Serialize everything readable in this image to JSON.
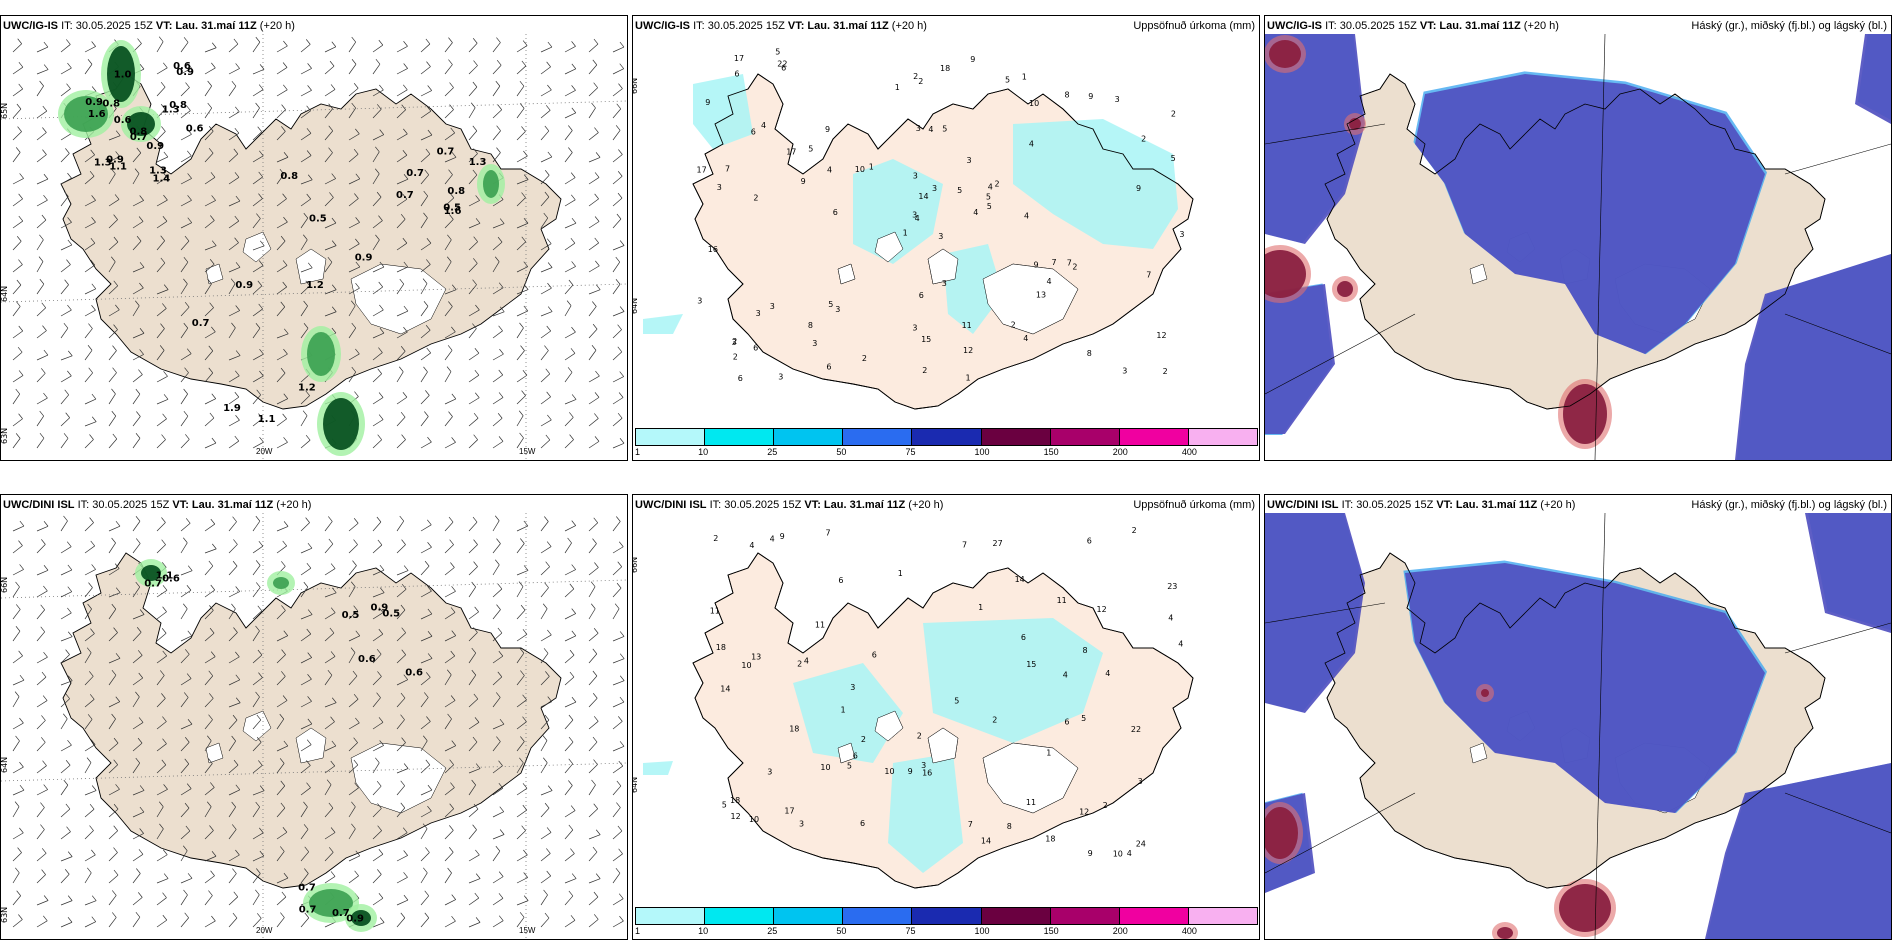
{
  "rows": [
    {
      "model": "UWC/IG-IS",
      "wind_panel": {
        "header": {
          "model": "UWC/IG-IS",
          "it_label": "IT: 30.05.2025 15Z",
          "vt_label": "VT: Lau. 31.maí 11Z",
          "lead": "(+20 h)"
        },
        "lat_labels": [
          "65N",
          "64N",
          "63N"
        ],
        "lon_labels": [
          "20W",
          "15W"
        ],
        "values": [
          "1.4",
          "1.0",
          "0.9",
          "0.8",
          "0.8",
          "1.3",
          "0.6",
          "0.6",
          "0.7",
          "1.1",
          "1.3",
          "0.9",
          "0.8",
          "0.9",
          "1.3",
          "0.6",
          "1.6",
          "0.9",
          "0.8",
          "1.3",
          "0.5",
          "0.7",
          "0.5",
          "1.6",
          "0.7",
          "0.7",
          "0.8",
          "0.7",
          "1.1",
          "0.9",
          "1.2",
          "0.9",
          "1.2",
          "1.9"
        ]
      },
      "precip_panel": {
        "header": {
          "model": "UWC/IG-IS",
          "it_label": "IT: 30.05.2025 15Z",
          "vt_label": "VT: Lau. 31.maí 11Z",
          "lead": "(+20 h)"
        },
        "title": "Uppsöfnuð úrkoma (mm)",
        "lat_labels": [
          "66N",
          "64N"
        ],
        "values": [
          "3",
          "6",
          "4",
          "2",
          "4",
          "3",
          "1",
          "5",
          "10",
          "4",
          "6",
          "2",
          "2",
          "2",
          "1",
          "4",
          "3",
          "3",
          "3",
          "3",
          "1",
          "2",
          "3",
          "4",
          "2",
          "2",
          "4",
          "2",
          "3",
          "9",
          "5",
          "3",
          "3",
          "14",
          "9",
          "8",
          "5",
          "3",
          "12",
          "7",
          "9",
          "10",
          "9",
          "13",
          "6",
          "17",
          "5",
          "6",
          "15",
          "5",
          "3",
          "2",
          "9",
          "4",
          "4",
          "8",
          "22",
          "17",
          "11",
          "3",
          "18",
          "6",
          "7",
          "5",
          "9",
          "5",
          "5",
          "1",
          "3",
          "3",
          "6",
          "2",
          "7",
          "4",
          "3",
          "6",
          "17",
          "16",
          "3",
          "12",
          "5",
          "6",
          "4",
          "7",
          "2",
          "9",
          "3",
          "8",
          "1",
          "2",
          "2",
          "3"
        ]
      },
      "cloud_panel": {
        "header": {
          "model": "UWC/IG-IS",
          "it_label": "IT: 30.05.2025 15Z",
          "vt_label": "VT: Lau. 31.maí 11Z",
          "lead": "(+20 h)"
        },
        "title": "Háský (gr.), miðský (fj.bl.) og lágský (bl.)"
      }
    },
    {
      "model": "UWC/DINI ISL",
      "wind_panel": {
        "header": {
          "model": "UWC/DINI ISL",
          "it_label": "IT: 30.05.2025 15Z",
          "vt_label": "VT: Lau. 31.maí 11Z",
          "lead": "(+20 h)"
        },
        "lat_labels": [
          "66N",
          "64N",
          "63N"
        ],
        "lon_labels": [
          "20W",
          "15W"
        ],
        "values": [
          "0.7",
          "0.6",
          "1.1",
          "0.6",
          "0.5",
          "0.9",
          "0.6",
          "0.5",
          "0.7",
          "0.7",
          "0.9",
          "0.7"
        ]
      },
      "precip_panel": {
        "header": {
          "model": "UWC/DINI ISL",
          "it_label": "IT: 30.05.2025 15Z",
          "vt_label": "VT: Lau. 31.maí 11Z",
          "lead": "(+20 h)"
        },
        "title": "Uppsöfnuð úrkoma (mm)",
        "lat_labels": [
          "66N",
          "64N"
        ],
        "values": [
          "2",
          "2",
          "4",
          "5",
          "4",
          "6",
          "9",
          "1",
          "5",
          "4",
          "4",
          "7",
          "2",
          "9",
          "3",
          "11",
          "5",
          "4",
          "23",
          "6",
          "10",
          "4",
          "8",
          "10",
          "2",
          "15",
          "7",
          "18",
          "12",
          "5",
          "6",
          "10",
          "10",
          "3",
          "11",
          "18",
          "13",
          "9",
          "18",
          "6",
          "14",
          "24",
          "22",
          "18",
          "16",
          "12",
          "3",
          "11",
          "7",
          "14",
          "14",
          "8",
          "2",
          "6",
          "4",
          "6",
          "3",
          "4",
          "3",
          "17",
          "27",
          "1",
          "11",
          "6",
          "12",
          "10",
          "2",
          "1",
          "1",
          "2"
        ]
      },
      "cloud_panel": {
        "header": {
          "model": "UWC/DINI ISL",
          "it_label": "IT: 30.05.2025 15Z",
          "vt_label": "VT: Lau. 31.maí 11Z",
          "lead": "(+20 h)"
        },
        "title": "Háský (gr.), miðský (fj.bl.) og lágský (bl.)"
      }
    }
  ],
  "colorbar": {
    "ticks": [
      "1",
      "10",
      "25",
      "50",
      "75",
      "100",
      "150",
      "200",
      "400"
    ],
    "colors": [
      "#b4f8fa",
      "#00e8f0",
      "#00c4f0",
      "#2a6cf0",
      "#1a2ab0",
      "#6a0040",
      "#a8006a",
      "#f000a0",
      "#f8b0f0"
    ]
  },
  "colors": {
    "land": "#ecdfcf",
    "land_precip": "#fcebdf",
    "precip_light": "#a8f4f6",
    "cloud_dark": "#5050c0",
    "cloud_light": "#40a8f0",
    "cloud_high": "#8a2040",
    "green_dark": "#004a1a",
    "green_light": "#a0f0a0"
  }
}
